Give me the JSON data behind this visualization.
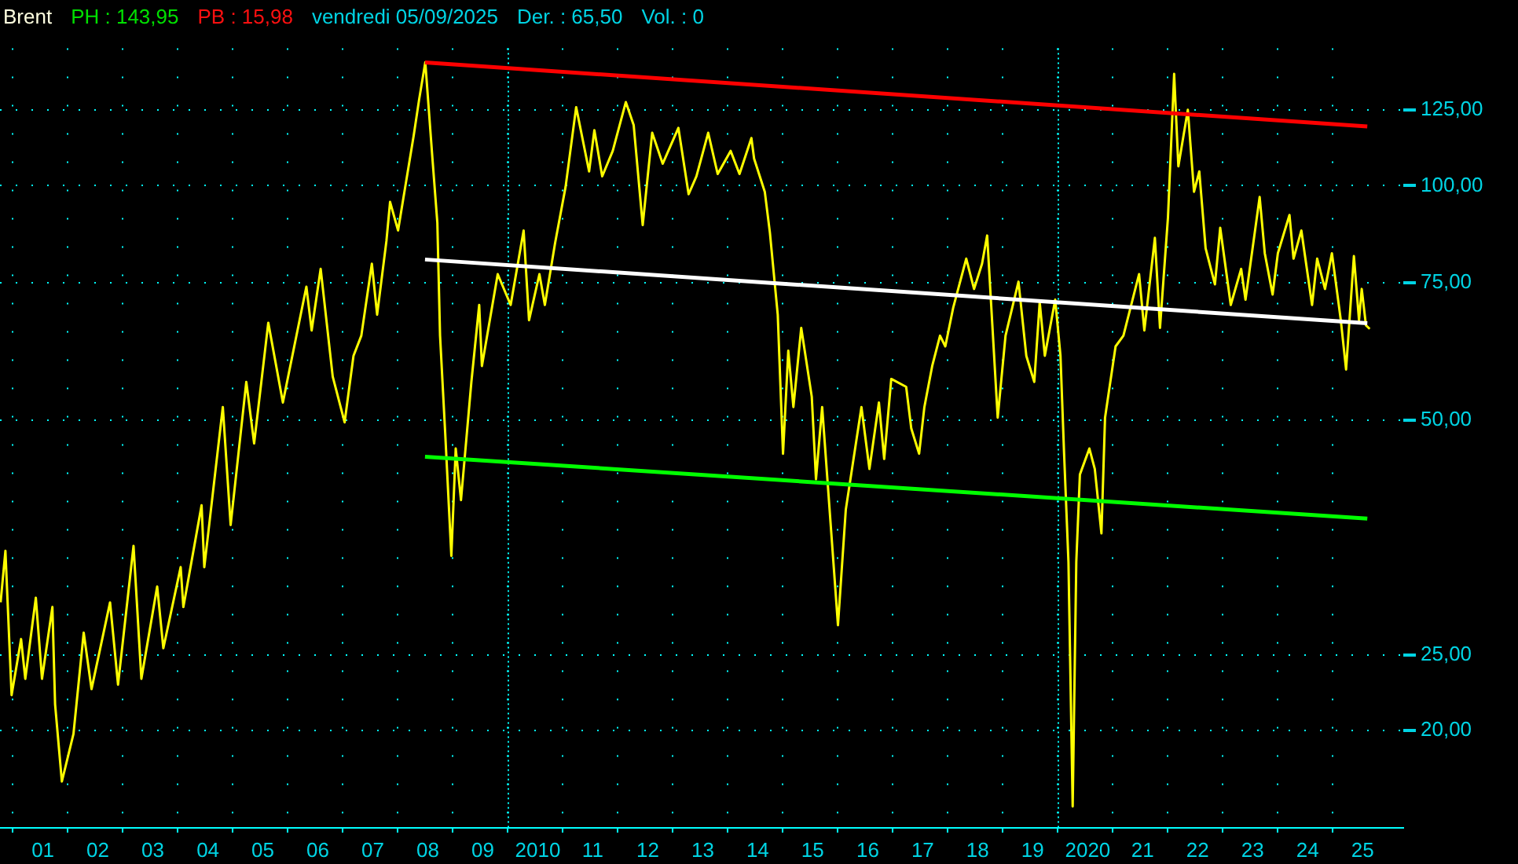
{
  "chart_data": {
    "type": "line",
    "title": "Brent",
    "annotations": [
      "PH : 143,95",
      "PB : 15,98",
      "vendredi 05/09/2025",
      "Der. : 65,50",
      "Vol. : 0"
    ],
    "series": [
      {
        "color": "#ffff00",
        "x": [
          "2000-10-12",
          "2000-11-13",
          "2000-12-24",
          "2001-02-25",
          "2001-03-25",
          "2001-06-03",
          "2001-07-14",
          "2001-09-21",
          "2001-10-09",
          "2001-11-23",
          "2002-02-08",
          "2002-04-17",
          "2002-06-08",
          "2002-10-09",
          "2002-12-01",
          "2003-03-14",
          "2003-05-05",
          "2003-08-18",
          "2003-09-28",
          "2004-01-21",
          "2004-02-08",
          "2004-06-08",
          "2004-06-26",
          "2004-10-27",
          "2004-12-18",
          "2005-04-01",
          "2005-05-23",
          "2005-08-25",
          "2005-11-30",
          "2006-05-05",
          "2006-06-09",
          "2006-08-08",
          "2006-10-27",
          "2007-01-14",
          "2007-03-14",
          "2007-05-05",
          "2007-07-14",
          "2007-08-18",
          "2007-10-19",
          "2007-11-12",
          "2008-01-04",
          "2008-04-17",
          "2008-05-23",
          "2008-07-03",
          "2008-08-18",
          "2008-09-21",
          "2008-10-09",
          "2008-11-12",
          "2008-12-23",
          "2009-01-21",
          "2009-02-25",
          "2009-05-05",
          "2009-06-26",
          "2009-07-14",
          "2009-10-27",
          "2010-01-21",
          "2010-04-17",
          "2010-05-23",
          "2010-07-31",
          "2010-09-05",
          "2010-11-12",
          "2011-01-21",
          "2011-04-01",
          "2011-06-26",
          "2011-07-31",
          "2011-09-21",
          "2011-11-30",
          "2012-02-25",
          "2012-04-17",
          "2012-06-16",
          "2012-08-18",
          "2012-10-27",
          "2013-02-08",
          "2013-04-17",
          "2013-06-08",
          "2013-08-25",
          "2013-10-27",
          "2014-01-21",
          "2014-03-21",
          "2014-06-08",
          "2014-06-26",
          "2014-09-05",
          "2014-10-09",
          "2014-11-30",
          "2015-01-04",
          "2015-02-08",
          "2015-03-14",
          "2015-05-05",
          "2015-07-14",
          "2015-08-11",
          "2015-09-21",
          "2016-01-04",
          "2016-02-25",
          "2016-06-08",
          "2016-07-31",
          "2016-10-02",
          "2016-11-06",
          "2016-12-23",
          "2017-04-01",
          "2017-05-05",
          "2017-06-26",
          "2017-07-31",
          "2017-09-21",
          "2017-11-12",
          "2017-12-17",
          "2018-02-08",
          "2018-05-05",
          "2018-06-26",
          "2018-08-18",
          "2018-09-21",
          "2018-11-30",
          "2019-01-21",
          "2019-04-17",
          "2019-06-08",
          "2019-07-31",
          "2019-09-05",
          "2019-10-09",
          "2019-12-17",
          "2020-01-21",
          "2020-02-14",
          "2020-03-14",
          "2020-04-11",
          "2020-05-05",
          "2020-05-29",
          "2020-07-31",
          "2020-09-05",
          "2020-10-19",
          "2020-11-12",
          "2021-01-21",
          "2021-03-14",
          "2021-05-05",
          "2021-06-26",
          "2021-07-31",
          "2021-10-09",
          "2021-11-12",
          "2022-01-04",
          "2022-02-14",
          "2022-03-14",
          "2022-05-16",
          "2022-06-26",
          "2022-07-31",
          "2022-09-11",
          "2022-11-12",
          "2022-12-17",
          "2023-02-25",
          "2023-05-05",
          "2023-06-03",
          "2023-09-05",
          "2023-10-09",
          "2023-11-30",
          "2024-01-04",
          "2024-03-21",
          "2024-04-17",
          "2024-06-08",
          "2024-08-18",
          "2024-09-21",
          "2024-11-12",
          "2024-12-28",
          "2025-02-25",
          "2025-04-01",
          "2025-05-23",
          "2025-06-26",
          "2025-07-14",
          "2025-08-11",
          "2025-09-05"
        ],
        "values": [
          29.2,
          34.0,
          22.2,
          26.2,
          23.3,
          29.6,
          23.3,
          28.8,
          21.6,
          17.2,
          19.8,
          26.7,
          22.6,
          29.2,
          22.9,
          34.5,
          23.3,
          30.6,
          25.5,
          32.4,
          28.8,
          38.9,
          32.4,
          52.0,
          36.7,
          56.0,
          46.7,
          66.7,
          52.7,
          74.2,
          65.2,
          78.2,
          56.9,
          49.7,
          60.5,
          64.2,
          79.4,
          68.3,
          85.0,
          95.3,
          87.6,
          116.0,
          129.0,
          143.95,
          109.2,
          89.6,
          64.2,
          48.2,
          33.5,
          46.0,
          39.5,
          56.0,
          70.3,
          58.7,
          77.0,
          70.3,
          87.6,
          67.2,
          77.0,
          70.3,
          84.4,
          99.7,
          126.1,
          104.3,
          117.8,
          102.8,
          110.8,
          128.0,
          119.6,
          89.0,
          116.9,
          106.7,
          118.6,
          97.5,
          102.8,
          116.9,
          103.5,
          110.8,
          103.5,
          115.1,
          108.3,
          98.2,
          87.0,
          68.3,
          45.3,
          61.4,
          52.0,
          65.7,
          53.6,
          42.0,
          52.0,
          27.3,
          38.4,
          52.0,
          43.3,
          52.7,
          44.6,
          56.5,
          55.2,
          48.8,
          45.3,
          52.0,
          58.7,
          64.2,
          62.2,
          69.8,
          80.6,
          73.7,
          79.4,
          86.3,
          50.4,
          64.2,
          75.3,
          60.5,
          56.0,
          70.9,
          60.5,
          71.4,
          60.5,
          45.3,
          32.9,
          15.98,
          32.9,
          42.6,
          46.0,
          43.3,
          35.8,
          50.4,
          62.2,
          64.2,
          70.3,
          77.0,
          65.2,
          85.7,
          65.7,
          91.1,
          139.1,
          105.9,
          125.1,
          98.2,
          104.3,
          83.1,
          74.7,
          88.3,
          70.3,
          78.2,
          71.4,
          96.7,
          81.9,
          72.5,
          81.9,
          91.7,
          80.6,
          87.6,
          70.3,
          80.6,
          73.7,
          81.9,
          67.2,
          58.1,
          81.2,
          67.2,
          73.7,
          66.2,
          65.5
        ]
      },
      {
        "color": "#ff0000",
        "x": [
          "2008-07-01",
          "2025-08-20"
        ],
        "values": [
          143.9,
          119.1
        ]
      },
      {
        "color": "#ffffff",
        "x": [
          "2008-07-01",
          "2025-08-20"
        ],
        "values": [
          80.4,
          66.6
        ]
      },
      {
        "color": "#00ff00",
        "x": [
          "2008-07-01",
          "2025-08-20"
        ],
        "values": [
          44.9,
          37.4
        ]
      }
    ],
    "xlim": [
      "2000-10-08",
      "2026-04-16"
    ],
    "xticks": [
      {
        "value": "2001-01-01",
        "label": null
      },
      {
        "value": "2001-07-20",
        "label": "01"
      },
      {
        "value": "2002-01-01",
        "label": null
      },
      {
        "value": "2002-07-20",
        "label": "02"
      },
      {
        "value": "2003-01-01",
        "label": null
      },
      {
        "value": "2003-07-20",
        "label": "03"
      },
      {
        "value": "2004-01-01",
        "label": null
      },
      {
        "value": "2004-07-20",
        "label": "04"
      },
      {
        "value": "2005-01-01",
        "label": null
      },
      {
        "value": "2005-07-20",
        "label": "05"
      },
      {
        "value": "2006-01-01",
        "label": null
      },
      {
        "value": "2006-07-20",
        "label": "06"
      },
      {
        "value": "2007-01-01",
        "label": null
      },
      {
        "value": "2007-07-20",
        "label": "07"
      },
      {
        "value": "2008-01-01",
        "label": null
      },
      {
        "value": "2008-07-20",
        "label": "08"
      },
      {
        "value": "2009-01-01",
        "label": null
      },
      {
        "value": "2009-07-20",
        "label": "09"
      },
      {
        "value": "2010-01-01",
        "label": null
      },
      {
        "value": "2010-07-20",
        "label": "2010"
      },
      {
        "value": "2011-01-01",
        "label": null
      },
      {
        "value": "2011-07-20",
        "label": "11"
      },
      {
        "value": "2012-01-01",
        "label": null
      },
      {
        "value": "2012-07-20",
        "label": "12"
      },
      {
        "value": "2013-01-01",
        "label": null
      },
      {
        "value": "2013-07-20",
        "label": "13"
      },
      {
        "value": "2014-01-01",
        "label": null
      },
      {
        "value": "2014-07-20",
        "label": "14"
      },
      {
        "value": "2015-01-01",
        "label": null
      },
      {
        "value": "2015-07-20",
        "label": "15"
      },
      {
        "value": "2016-01-01",
        "label": null
      },
      {
        "value": "2016-07-20",
        "label": "16"
      },
      {
        "value": "2017-01-01",
        "label": null
      },
      {
        "value": "2017-07-20",
        "label": "17"
      },
      {
        "value": "2018-01-01",
        "label": null
      },
      {
        "value": "2018-07-20",
        "label": "18"
      },
      {
        "value": "2019-01-01",
        "label": null
      },
      {
        "value": "2019-07-20",
        "label": "19"
      },
      {
        "value": "2020-01-01",
        "label": null
      },
      {
        "value": "2020-07-20",
        "label": "2020"
      },
      {
        "value": "2021-01-01",
        "label": null
      },
      {
        "value": "2021-07-20",
        "label": "21"
      },
      {
        "value": "2022-01-01",
        "label": null
      },
      {
        "value": "2022-07-20",
        "label": "22"
      },
      {
        "value": "2023-01-01",
        "label": null
      },
      {
        "value": "2023-07-20",
        "label": "23"
      },
      {
        "value": "2024-01-01",
        "label": null
      },
      {
        "value": "2024-07-20",
        "label": "24"
      },
      {
        "value": "2025-01-01",
        "label": null
      },
      {
        "value": "2025-07-20",
        "label": "25"
      }
    ],
    "ylim": [
      15,
      150
    ],
    "yticks": [
      {
        "value": 20,
        "label": "20,00"
      },
      {
        "value": 25,
        "label": "25,00"
      },
      {
        "value": 50,
        "label": "50,00"
      },
      {
        "value": 75,
        "label": "75,00"
      },
      {
        "value": 100,
        "label": "100,00"
      },
      {
        "value": 125,
        "label": "125,00"
      }
    ],
    "log": true,
    "grid": true,
    "legend": false
  }
}
